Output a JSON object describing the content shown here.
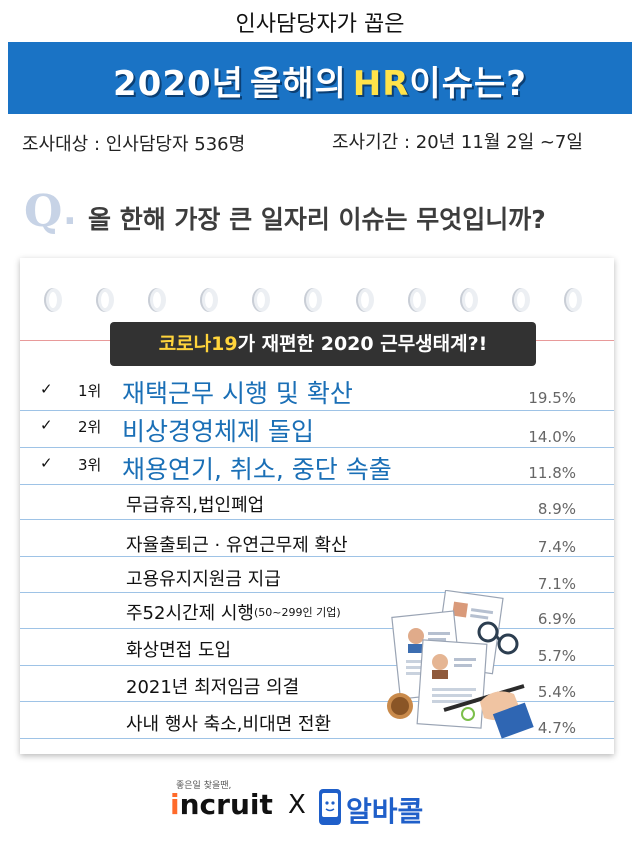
{
  "header": {
    "top_title": "인사담당자가 꼽은",
    "banner_year": "2020년",
    "banner_word1": "올해의",
    "banner_hr": "HR",
    "banner_word2": "이슈는?"
  },
  "survey": {
    "target": "조사대상 : 인사담당자 536명",
    "period": "조사기간 : 20년 11월 2일 ~7일"
  },
  "question": {
    "letter": "Q",
    "dot": ".",
    "text": "올 한해 가장 큰 일자리 이슈는 무엇입니까?"
  },
  "subtitle": {
    "highlight": "코로나19",
    "rest": "가 재편한 2020 근무생태계?!"
  },
  "items": [
    {
      "check": "✓",
      "rank": "1위",
      "label": "재택근무 시행 및 확산",
      "pct": "19.5%"
    },
    {
      "check": "✓",
      "rank": "2위",
      "label": "비상경영체제 돌입",
      "pct": "14.0%"
    },
    {
      "check": "✓",
      "rank": "3위",
      "label": "채용연기, 취소, 중단 속출",
      "pct": "11.8%"
    },
    {
      "label": "무급휴직,법인폐업",
      "pct": "8.9%"
    },
    {
      "label": "자율출퇴근 · 유연근무제 확산",
      "pct": "7.4%"
    },
    {
      "label": "고용유지지원금 지급",
      "pct": "7.1%"
    },
    {
      "label": "주52시간제 시행",
      "note": "(50~299인 기업)",
      "pct": "6.9%"
    },
    {
      "label": "화상면접 도입",
      "pct": "5.7%"
    },
    {
      "label": "2021년 최저임금 의결",
      "pct": "5.4%"
    },
    {
      "label": "사내 행사 축소,비대면 전환",
      "pct": "4.7%"
    }
  ],
  "footer": {
    "tagline": "좋은일 찾을땐,",
    "incruit_i": "i",
    "incruit_rest": "ncruit",
    "x": "X",
    "albacall": "알바콜"
  },
  "colors": {
    "banner": "#1a73c5",
    "banner_highlight": "#ffe34a",
    "top_rank_text": "#1a6fb6",
    "subtitle_bg": "#323232",
    "subtitle_highlight": "#ffd43b",
    "albacall": "#1f5fc9"
  }
}
